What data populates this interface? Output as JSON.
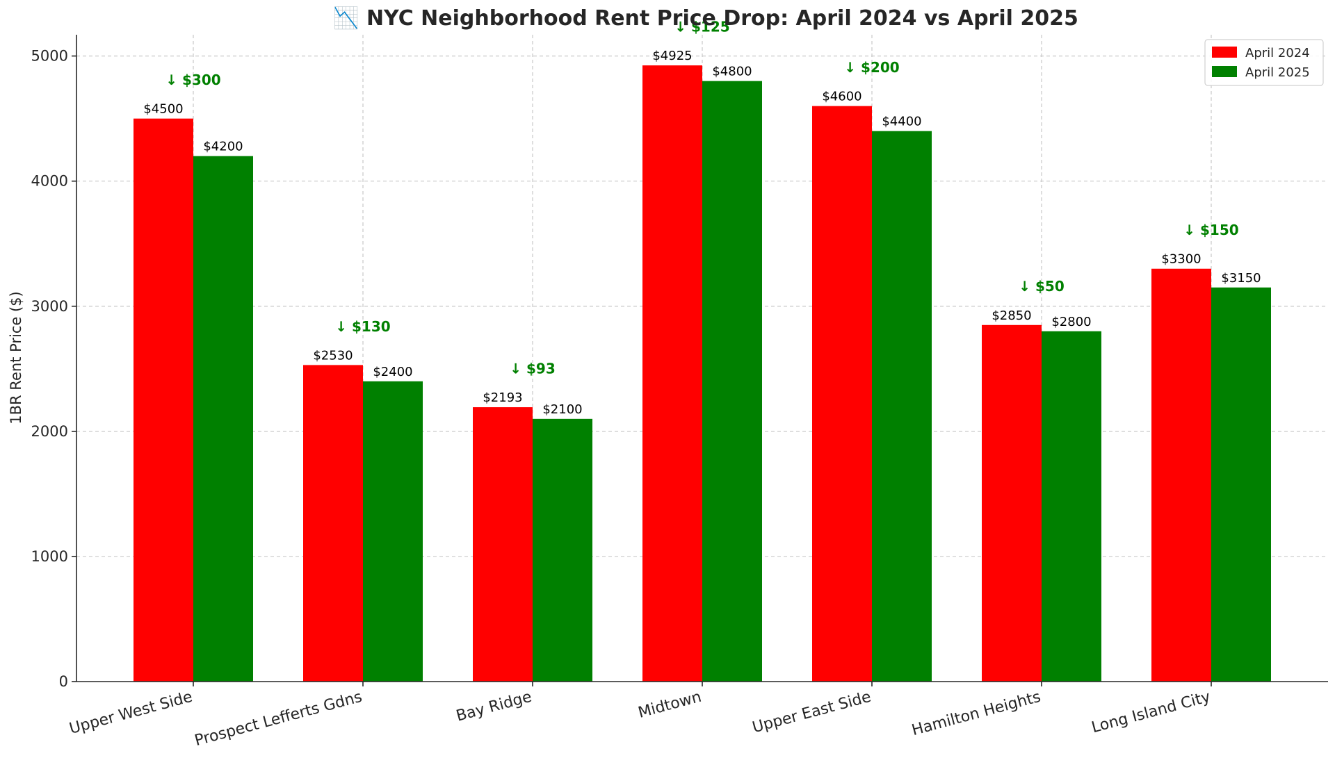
{
  "chart_data": {
    "type": "bar",
    "title": "📉 NYC Neighborhood Rent Price Drop: April 2024 vs April 2025",
    "xlabel": "",
    "ylabel": "1BR Rent Price ($)",
    "ylim": [
      0,
      5170
    ],
    "yticks": [
      0,
      1000,
      2000,
      3000,
      4000,
      5000
    ],
    "grid": true,
    "legend_position": "top-right",
    "categories": [
      "Upper West Side",
      "Prospect Lefferts Gdns",
      "Bay Ridge",
      "Midtown",
      "Upper East Side",
      "Hamilton Heights",
      "Long Island City"
    ],
    "series": [
      {
        "name": "April 2024",
        "color": "#ff0000",
        "values": [
          4500,
          2530,
          2193,
          4925,
          4600,
          2850,
          3300
        ],
        "labels": [
          "$4500",
          "$2530",
          "$2193",
          "$4925",
          "$4600",
          "$2850",
          "$3300"
        ]
      },
      {
        "name": "April 2025",
        "color": "#008000",
        "values": [
          4200,
          2400,
          2100,
          4800,
          4400,
          2800,
          3150
        ],
        "labels": [
          "$4200",
          "$2400",
          "$2100",
          "$4800",
          "$4400",
          "$2800",
          "$3150"
        ]
      }
    ],
    "annotations": {
      "color": "#008000",
      "labels": [
        "↓ $300",
        "↓ $130",
        "↓ $93",
        "↓ $125",
        "↓ $200",
        "↓ $50",
        "↓ $150"
      ]
    }
  }
}
